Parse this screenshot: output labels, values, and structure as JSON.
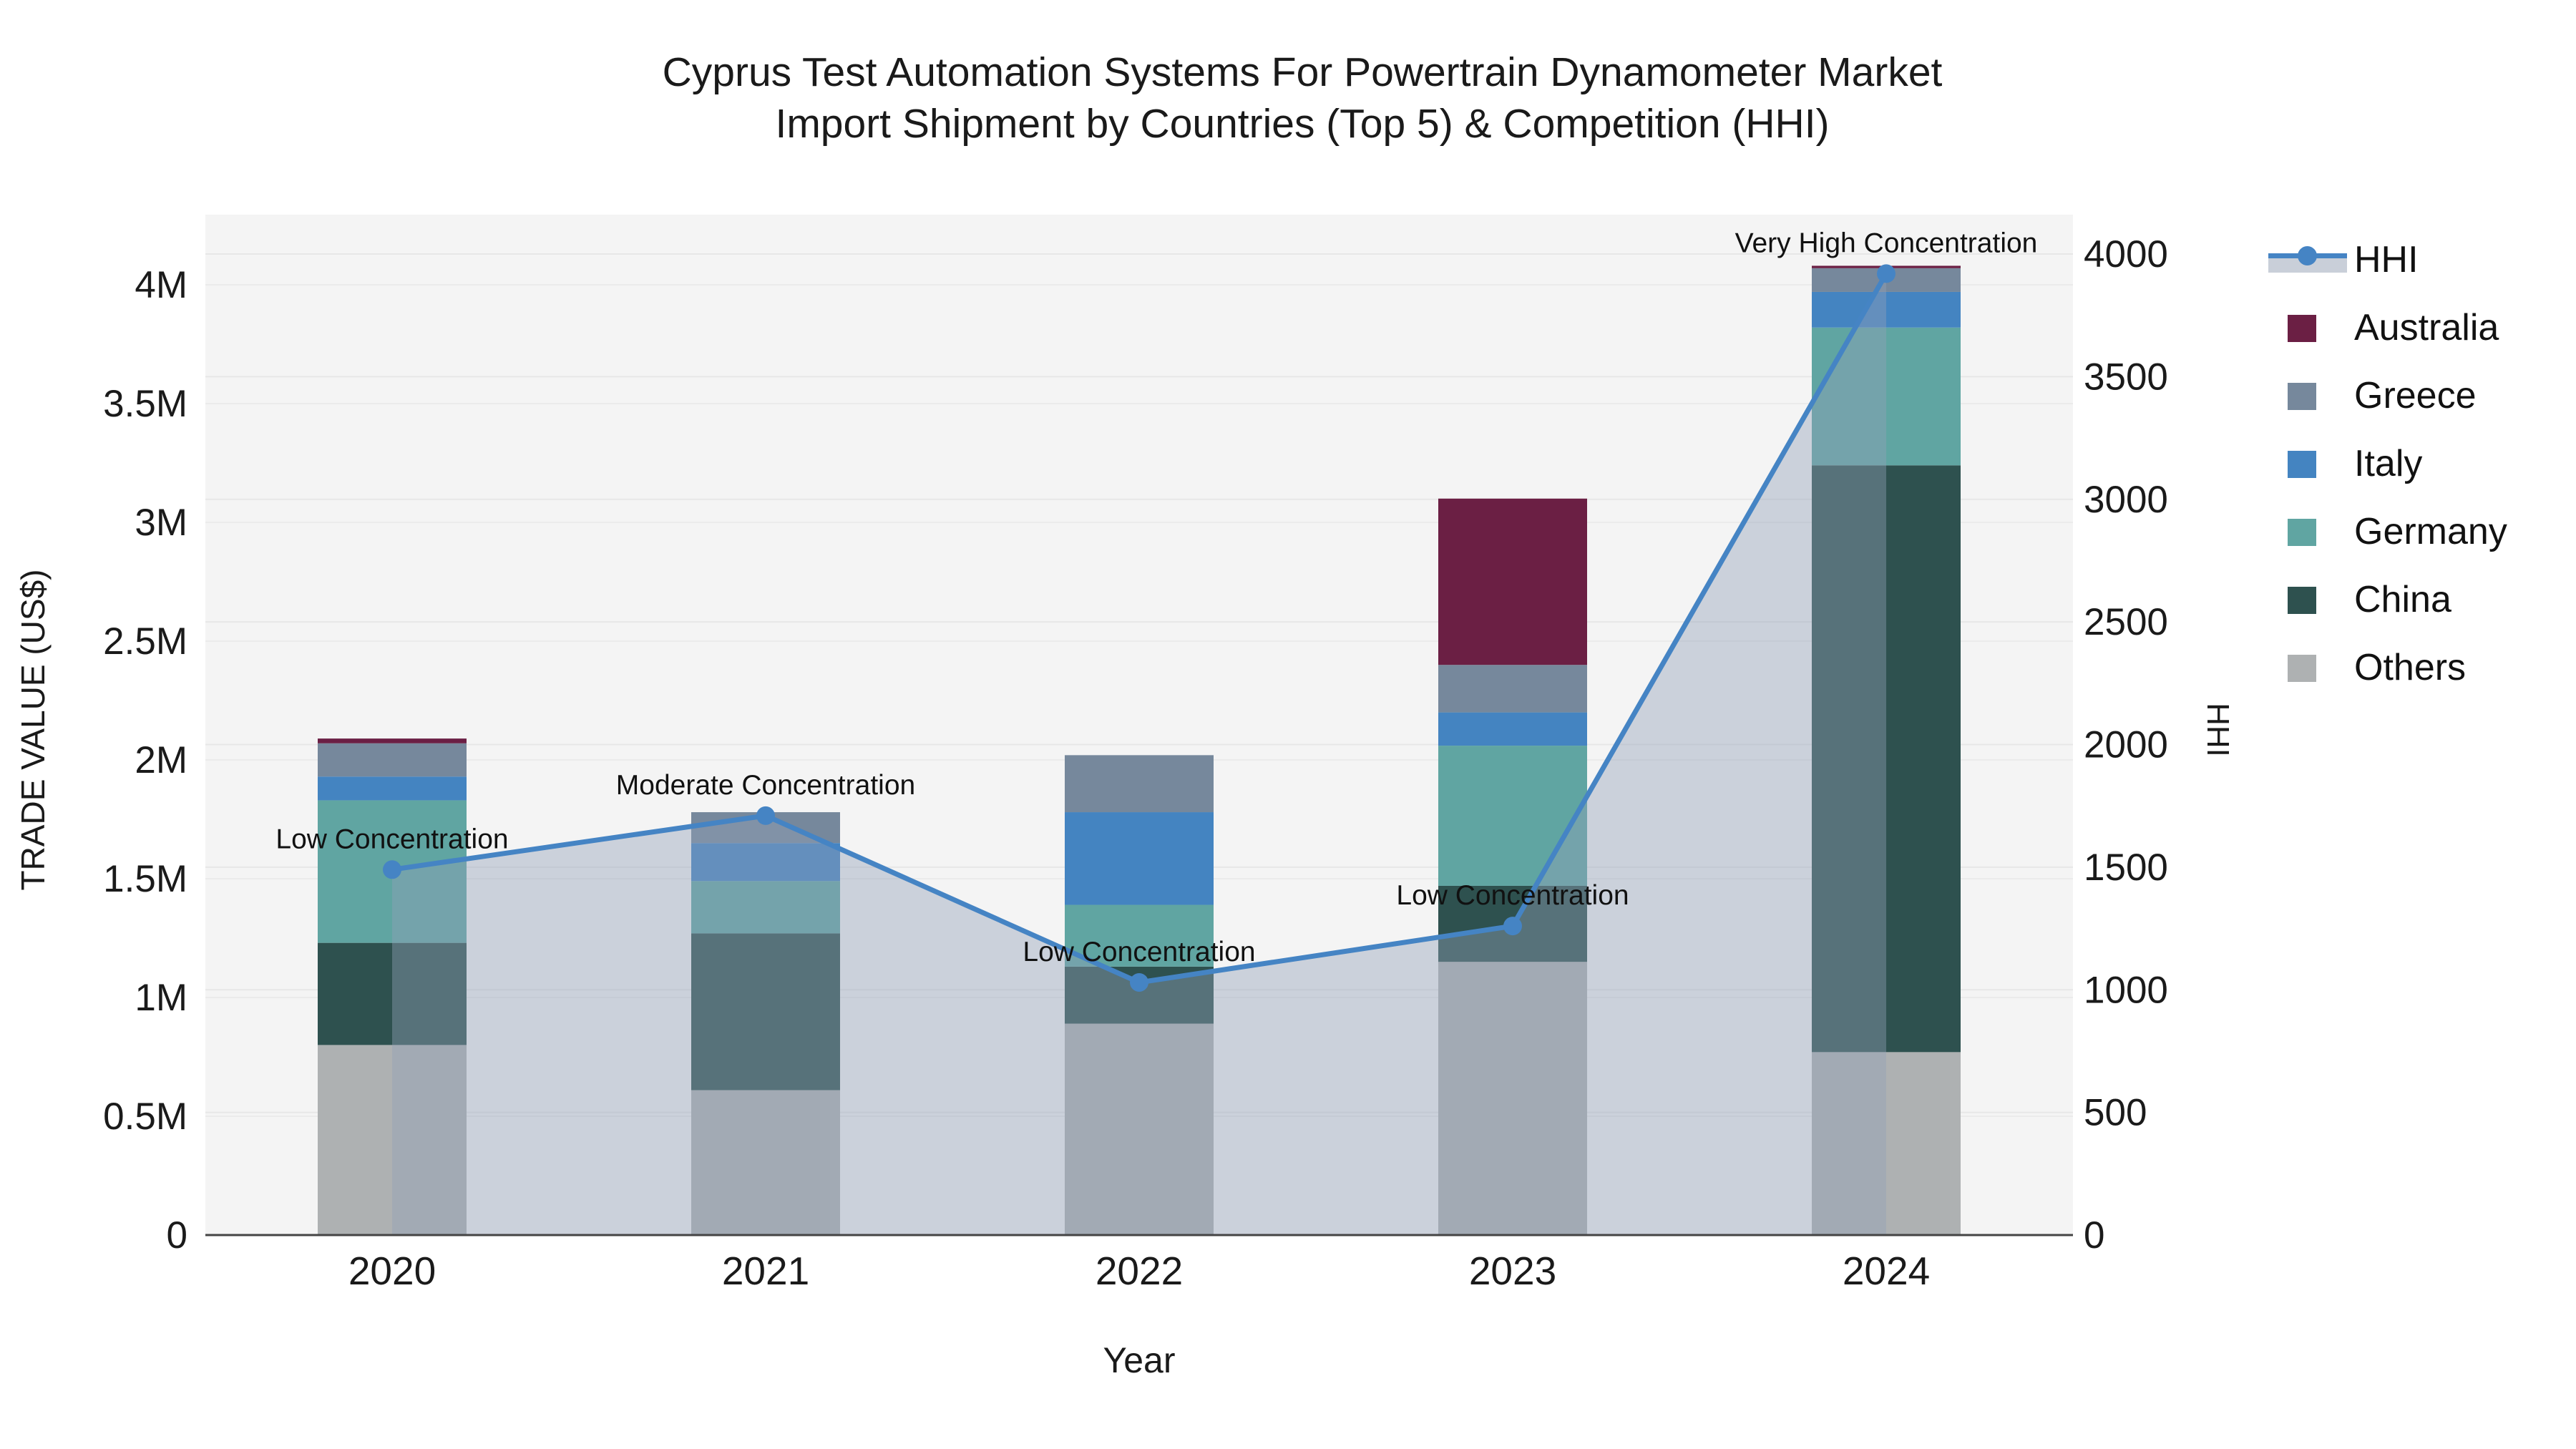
{
  "title": {
    "line1": "Cyprus Test Automation Systems For Powertrain Dynamometer Market",
    "line2": "Import Shipment by Countries (Top 5) & Competition (HHI)"
  },
  "chart_data": {
    "type": "stacked-bar+line",
    "title": "Cyprus Test Automation Systems For Powertrain Dynamometer Market Import Shipment by Countries (Top 5) & Competition (HHI)",
    "categories": [
      "2020",
      "2021",
      "2022",
      "2023",
      "2024"
    ],
    "unit": "US$ millions (left axis), HHI index (right axis)",
    "series": [
      {
        "key": "others",
        "name": "Others",
        "color": "#aeb1b2",
        "values": [
          0.8,
          0.61,
          0.89,
          1.15,
          0.77
        ]
      },
      {
        "key": "china",
        "name": "China",
        "color": "#2e514f",
        "values": [
          0.43,
          0.66,
          0.24,
          0.32,
          2.47
        ]
      },
      {
        "key": "germany",
        "name": "Germany",
        "color": "#60a5a2",
        "values": [
          0.6,
          0.22,
          0.26,
          0.59,
          0.58
        ]
      },
      {
        "key": "italy",
        "name": "Italy",
        "color": "#4484c1",
        "values": [
          0.1,
          0.16,
          0.39,
          0.14,
          0.15
        ]
      },
      {
        "key": "greece",
        "name": "Greece",
        "color": "#76889c",
        "values": [
          0.14,
          0.13,
          0.24,
          0.2,
          0.1
        ]
      },
      {
        "key": "australia",
        "name": "Australia",
        "color": "#6b1f44",
        "values": [
          0.02,
          0,
          0,
          0.7,
          0.01
        ]
      }
    ],
    "hhi": {
      "name": "HHI",
      "color": "#4584c4",
      "area_color": "rgba(145,160,183,0.42)",
      "values": [
        1490,
        1710,
        1030,
        1260,
        3920
      ]
    },
    "annotations": [
      {
        "year": "2020",
        "text": "Low Concentration"
      },
      {
        "year": "2021",
        "text": "Moderate Concentration"
      },
      {
        "year": "2022",
        "text": "Low Concentration"
      },
      {
        "year": "2023",
        "text": "Low Concentration"
      },
      {
        "year": "2024",
        "text": "Very High Concentration"
      }
    ],
    "left_axis": {
      "label": "TRADE VALUE (US$)",
      "tick_labels": [
        "0",
        "0.5M",
        "1M",
        "1.5M",
        "2M",
        "2.5M",
        "3M",
        "3.5M",
        "4M"
      ],
      "tick_values_musd": [
        0,
        0.5,
        1,
        1.5,
        2,
        2.5,
        3,
        3.5,
        4
      ]
    },
    "right_axis": {
      "label": "HHI",
      "tick_labels": [
        "0",
        "500",
        "1000",
        "1500",
        "2000",
        "2500",
        "3000",
        "3500",
        "4000"
      ],
      "tick_values": [
        0,
        500,
        1000,
        1500,
        2000,
        2500,
        3000,
        3500,
        4000
      ],
      "max": 4000
    },
    "x_axis": {
      "label": "Year"
    },
    "legend": [
      {
        "key": "hhi",
        "label": "HHI",
        "type": "line",
        "color": "#4584c4",
        "band_color": "#c9cfd9"
      },
      {
        "key": "australia",
        "label": "Australia",
        "type": "swatch",
        "color": "#6b1f44"
      },
      {
        "key": "greece",
        "label": "Greece",
        "type": "swatch",
        "color": "#76889c"
      },
      {
        "key": "italy",
        "label": "Italy",
        "type": "swatch",
        "color": "#4484c1"
      },
      {
        "key": "germany",
        "label": "Germany",
        "type": "swatch",
        "color": "#60a5a2"
      },
      {
        "key": "china",
        "label": "China",
        "type": "swatch",
        "color": "#2e514f"
      },
      {
        "key": "others",
        "label": "Others",
        "type": "swatch",
        "color": "#aeb1b2"
      }
    ]
  }
}
